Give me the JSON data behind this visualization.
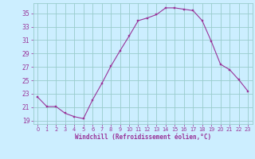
{
  "x": [
    0,
    1,
    2,
    3,
    4,
    5,
    6,
    7,
    8,
    9,
    10,
    11,
    12,
    13,
    14,
    15,
    16,
    17,
    18,
    19,
    20,
    21,
    22,
    23
  ],
  "y": [
    22.5,
    21.1,
    21.1,
    20.1,
    19.6,
    19.3,
    22.1,
    24.5,
    27.1,
    29.4,
    31.6,
    33.9,
    34.3,
    34.8,
    35.8,
    35.8,
    35.6,
    35.4,
    33.9,
    30.8,
    27.4,
    26.6,
    25.1,
    23.4
  ],
  "line_color": "#993399",
  "marker_color": "#993399",
  "bg_color": "#cceeff",
  "grid_color": "#99cccc",
  "xlabel": "Windchill (Refroidissement éolien,°C)",
  "xlabel_color": "#993399",
  "tick_color": "#993399",
  "ylim": [
    18.5,
    36.5
  ],
  "xlim": [
    -0.5,
    23.5
  ],
  "yticks": [
    19,
    21,
    23,
    25,
    27,
    29,
    31,
    33,
    35
  ],
  "xtick_labels": [
    "0",
    "1",
    "2",
    "3",
    "4",
    "5",
    "6",
    "7",
    "8",
    "9",
    "10",
    "11",
    "12",
    "13",
    "14",
    "15",
    "16",
    "17",
    "18",
    "19",
    "20",
    "21",
    "22",
    "23"
  ]
}
